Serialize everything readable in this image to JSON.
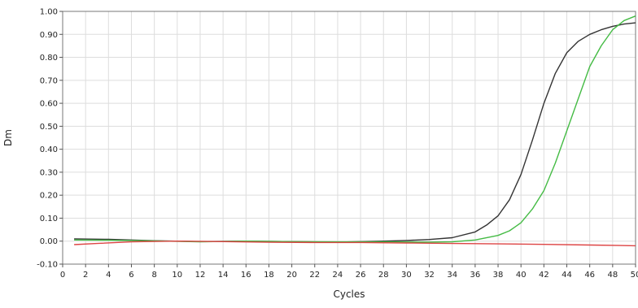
{
  "chart_data": {
    "type": "line",
    "title": "",
    "xlabel": "Cycles",
    "ylabel": "Dm",
    "xlim": [
      0,
      50
    ],
    "ylim": [
      -0.1,
      1.0
    ],
    "x_ticks": [
      0,
      2,
      4,
      6,
      8,
      10,
      12,
      14,
      16,
      18,
      20,
      22,
      24,
      26,
      28,
      30,
      32,
      34,
      36,
      38,
      40,
      42,
      44,
      46,
      48,
      50
    ],
    "y_ticks": [
      -0.1,
      0.0,
      0.1,
      0.2,
      0.3,
      0.4,
      0.5,
      0.6,
      0.7,
      0.8,
      0.9,
      1.0
    ],
    "y_tick_labels": [
      "-0.10",
      "0.00",
      "0.10",
      "0.20",
      "0.30",
      "0.40",
      "0.50",
      "0.60",
      "0.70",
      "0.80",
      "0.90",
      "1.00"
    ],
    "grid": true,
    "series": [
      {
        "color": "#333333",
        "points": [
          [
            1,
            0.01
          ],
          [
            4,
            0.008
          ],
          [
            8,
            0.002
          ],
          [
            12,
            -0.002
          ],
          [
            16,
            0.0
          ],
          [
            20,
            -0.002
          ],
          [
            24,
            -0.004
          ],
          [
            28,
            0.0
          ],
          [
            30,
            0.003
          ],
          [
            32,
            0.007
          ],
          [
            34,
            0.015
          ],
          [
            36,
            0.04
          ],
          [
            37,
            0.07
          ],
          [
            38,
            0.11
          ],
          [
            39,
            0.18
          ],
          [
            40,
            0.29
          ],
          [
            41,
            0.44
          ],
          [
            42,
            0.6
          ],
          [
            43,
            0.73
          ],
          [
            44,
            0.82
          ],
          [
            45,
            0.87
          ],
          [
            46,
            0.9
          ],
          [
            47,
            0.92
          ],
          [
            48,
            0.935
          ],
          [
            49,
            0.945
          ],
          [
            50,
            0.95
          ]
        ]
      },
      {
        "color": "#44bb44",
        "points": [
          [
            1,
            0.005
          ],
          [
            4,
            0.004
          ],
          [
            8,
            0.001
          ],
          [
            12,
            -0.003
          ],
          [
            16,
            0.0
          ],
          [
            20,
            -0.002
          ],
          [
            24,
            -0.003
          ],
          [
            28,
            -0.003
          ],
          [
            32,
            -0.004
          ],
          [
            34,
            -0.003
          ],
          [
            36,
            0.005
          ],
          [
            38,
            0.025
          ],
          [
            39,
            0.045
          ],
          [
            40,
            0.08
          ],
          [
            41,
            0.14
          ],
          [
            42,
            0.22
          ],
          [
            43,
            0.34
          ],
          [
            44,
            0.48
          ],
          [
            45,
            0.62
          ],
          [
            46,
            0.76
          ],
          [
            47,
            0.85
          ],
          [
            48,
            0.92
          ],
          [
            49,
            0.96
          ],
          [
            50,
            0.98
          ]
        ]
      },
      {
        "color": "#dd4444",
        "points": [
          [
            1,
            -0.015
          ],
          [
            3,
            -0.01
          ],
          [
            6,
            -0.003
          ],
          [
            10,
            0.0
          ],
          [
            14,
            -0.002
          ],
          [
            18,
            -0.005
          ],
          [
            22,
            -0.006
          ],
          [
            26,
            -0.006
          ],
          [
            30,
            -0.008
          ],
          [
            34,
            -0.01
          ],
          [
            38,
            -0.012
          ],
          [
            42,
            -0.014
          ],
          [
            46,
            -0.017
          ],
          [
            50,
            -0.02
          ]
        ]
      }
    ]
  }
}
